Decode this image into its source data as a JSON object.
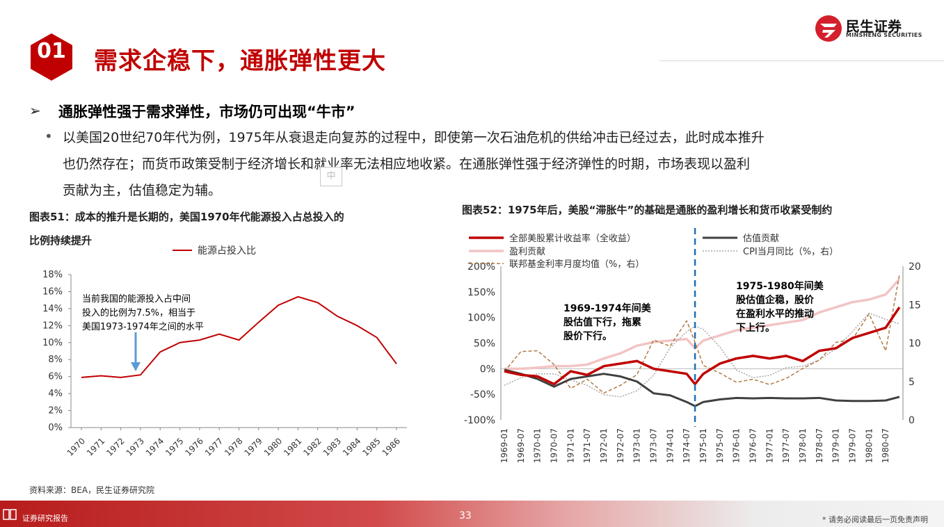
{
  "header": {
    "badge": "01",
    "title": "需求企稳下，通胀弹性更大",
    "logo_cn": "民生证券",
    "logo_en": "MINSHENG SECURITIES"
  },
  "content": {
    "heading": "通胀弹性强于需求弹性，市场仍可出现“牛市”",
    "body_lines": [
      "以美国20世纪70年代为例，1975年从衰退走向复苏的过程中，即使第一次石油危机的供给冲击已经过去，此时成本推升",
      "也仍然存在；而货币政策受制于经济增长和就业率无法相应地收紧。在通胀弹性强于经济弹性的时期，市场表现以盈利",
      "贡献为主，估值稳定为辅。"
    ],
    "ime_glyph": "中"
  },
  "figure51": {
    "caption_line1": "图表51：成本的推升是长期的，美国1970年代能源投入占总投入的",
    "caption_line2": "比例持续提升",
    "annotation": [
      "当前我国的能源投入占中间",
      "投入的比例为7.5%，相当于",
      "美国1973-1974年之间的水平"
    ],
    "source": "资料来源：BEA，民生证券研究院"
  },
  "figure52": {
    "caption": "图表52：1975年后，美股“滞胀牛”的基础是通胀的盈利增长和货币收紧受制约",
    "annotation_left": [
      "1969-1974年间美",
      "股估值下行，拖累",
      "股价下行。"
    ],
    "annotation_right": [
      "1975-1980年间美",
      "股估值企稳，股价",
      "在盈利水平的推动",
      "下上行。"
    ]
  },
  "footer": {
    "label": "证券研究报告",
    "page_number": "33",
    "disclaimer": "* 请务必阅读最后一页免责声明"
  },
  "colors": {
    "brand_red": "#c00000",
    "series_red": "#c00000",
    "series_pink": "#f2c4c4",
    "series_gray": "#404040",
    "series_brown": "#b07a42",
    "series_dotted": "#a6a6a6",
    "divider_blue": "#1f6fb5"
  },
  "chart_data": [
    {
      "type": "line",
      "x": [
        "1970",
        "1971",
        "1972",
        "1973",
        "1974",
        "1975",
        "1976",
        "1977",
        "1978",
        "1979",
        "1980",
        "1981",
        "1982",
        "1983",
        "1984",
        "1985",
        "1986"
      ],
      "series": [
        {
          "name": "能源占投入比",
          "values": [
            5.9,
            6.1,
            5.9,
            6.2,
            8.9,
            10.0,
            10.3,
            11.0,
            10.3,
            12.4,
            14.4,
            15.4,
            14.7,
            13.1,
            12.0,
            10.6,
            7.5
          ]
        }
      ],
      "yticks": [
        "0%",
        "2%",
        "4%",
        "6%",
        "8%",
        "10%",
        "12%",
        "14%",
        "16%",
        "18%"
      ],
      "ylim": [
        0,
        18
      ],
      "title": "",
      "xlabel": "",
      "ylabel": "",
      "legend": "top"
    },
    {
      "type": "line",
      "x_ticks": [
        "1969-01",
        "1969-07",
        "1970-01",
        "1970-07",
        "1971-01",
        "1971-07",
        "1972-01",
        "1972-07",
        "1973-01",
        "1973-07",
        "1974-01",
        "1974-07",
        "1975-01",
        "1975-07",
        "1976-01",
        "1976-07",
        "1977-01",
        "1977-07",
        "1978-01",
        "1978-07",
        "1979-01",
        "1979-07",
        "1980-01",
        "1980-07"
      ],
      "y_left_ticks": [
        "200%",
        "150%",
        "100%",
        "50%",
        "0%",
        "-50%",
        "-100%"
      ],
      "y_left_lim": [
        -100,
        200
      ],
      "y_right_ticks": [
        "20",
        "15",
        "10",
        "5",
        "0"
      ],
      "y_right_lim": [
        0,
        20
      ],
      "divider_x": "1974-10",
      "legend": "top",
      "series": [
        {
          "name": "全部美股累计收益率（全收益）",
          "axis": "left",
          "x": [
            "1969-01",
            "1969-07",
            "1970-01",
            "1970-07",
            "1971-01",
            "1971-07",
            "1972-01",
            "1972-07",
            "1973-01",
            "1973-07",
            "1974-01",
            "1974-07",
            "1974-10",
            "1975-01",
            "1975-07",
            "1976-01",
            "1976-07",
            "1977-01",
            "1977-07",
            "1978-01",
            "1978-07",
            "1979-01",
            "1979-07",
            "1980-01",
            "1980-07",
            "1980-12"
          ],
          "values": [
            -5,
            -12,
            -15,
            -30,
            -5,
            -12,
            5,
            10,
            15,
            0,
            -5,
            -10,
            -30,
            -10,
            10,
            20,
            25,
            20,
            25,
            15,
            35,
            40,
            60,
            70,
            80,
            120
          ]
        },
        {
          "name": "估值贡献",
          "axis": "left",
          "x": [
            "1969-01",
            "1969-07",
            "1970-01",
            "1970-07",
            "1971-01",
            "1971-07",
            "1972-01",
            "1972-07",
            "1973-01",
            "1973-07",
            "1974-01",
            "1974-07",
            "1974-10",
            "1975-01",
            "1975-07",
            "1976-01",
            "1976-07",
            "1977-01",
            "1977-07",
            "1978-01",
            "1978-07",
            "1979-01",
            "1979-07",
            "1980-01",
            "1980-07",
            "1980-12"
          ],
          "values": [
            -2,
            -10,
            -20,
            -35,
            -20,
            -15,
            -10,
            -15,
            -25,
            -48,
            -52,
            -65,
            -73,
            -65,
            -60,
            -57,
            -58,
            -57,
            -58,
            -58,
            -57,
            -62,
            -63,
            -63,
            -62,
            -55
          ]
        },
        {
          "name": "盈利贡献",
          "axis": "left",
          "x": [
            "1969-01",
            "1969-07",
            "1970-01",
            "1970-07",
            "1971-01",
            "1971-07",
            "1972-01",
            "1972-07",
            "1973-01",
            "1973-07",
            "1974-01",
            "1974-07",
            "1974-10",
            "1975-01",
            "1975-07",
            "1976-01",
            "1976-07",
            "1977-01",
            "1977-07",
            "1978-01",
            "1978-07",
            "1979-01",
            "1979-07",
            "1980-01",
            "1980-07",
            "1980-12"
          ],
          "values": [
            0,
            0,
            2,
            5,
            5,
            8,
            20,
            30,
            45,
            52,
            55,
            58,
            40,
            55,
            65,
            75,
            80,
            85,
            90,
            95,
            110,
            120,
            130,
            135,
            145,
            175
          ]
        },
        {
          "name": "CPI当月同比（%，右）",
          "axis": "right",
          "x": [
            "1969-01",
            "1969-07",
            "1970-01",
            "1970-07",
            "1971-01",
            "1971-07",
            "1972-01",
            "1972-07",
            "1973-01",
            "1973-07",
            "1974-01",
            "1974-07",
            "1974-10",
            "1975-01",
            "1975-07",
            "1976-01",
            "1976-07",
            "1977-01",
            "1977-07",
            "1978-01",
            "1978-07",
            "1979-01",
            "1979-07",
            "1980-01",
            "1980-07",
            "1980-12"
          ],
          "values": [
            4.5,
            5.5,
            6.0,
            6.0,
            5.2,
            4.5,
            3.3,
            3.0,
            3.8,
            5.8,
            9.4,
            11.5,
            12.2,
            11.8,
            9.5,
            6.5,
            5.5,
            5.8,
            6.8,
            7.0,
            7.8,
            9.3,
            11.5,
            13.9,
            13.1,
            12.5
          ]
        },
        {
          "name": "联邦基金利率月度均值（%，右）",
          "axis": "right",
          "x": [
            "1969-01",
            "1969-07",
            "1970-01",
            "1970-07",
            "1971-01",
            "1971-07",
            "1972-01",
            "1972-07",
            "1973-01",
            "1973-07",
            "1974-01",
            "1974-07",
            "1974-10",
            "1975-01",
            "1975-07",
            "1976-01",
            "1976-07",
            "1977-01",
            "1977-07",
            "1978-01",
            "1978-07",
            "1979-01",
            "1979-07",
            "1980-01",
            "1980-07",
            "1980-12"
          ],
          "values": [
            6.3,
            8.9,
            9.0,
            7.2,
            4.1,
            5.3,
            3.5,
            4.5,
            5.9,
            10.4,
            9.6,
            12.9,
            10.1,
            7.1,
            6.1,
            4.9,
            5.3,
            4.6,
            5.4,
            6.7,
            7.8,
            10.1,
            10.5,
            13.8,
            9.0,
            18.9
          ]
        }
      ],
      "title": "",
      "xlabel": "",
      "ylabel": ""
    }
  ]
}
